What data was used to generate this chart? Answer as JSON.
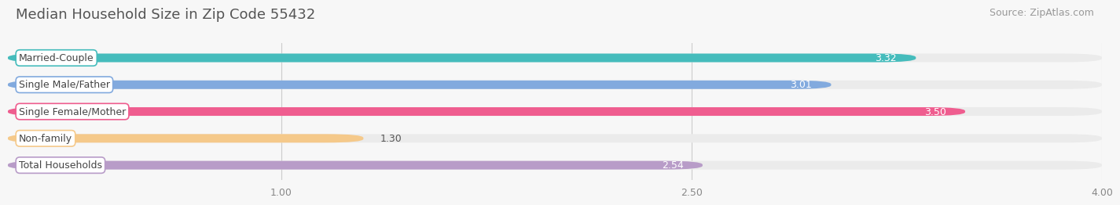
{
  "title": "Median Household Size in Zip Code 55432",
  "source": "Source: ZipAtlas.com",
  "categories": [
    "Married-Couple",
    "Single Male/Father",
    "Single Female/Mother",
    "Non-family",
    "Total Households"
  ],
  "values": [
    3.32,
    3.01,
    3.5,
    1.3,
    2.54
  ],
  "bar_colors": [
    "#45bcbc",
    "#82aade",
    "#ef5d8f",
    "#f5c98a",
    "#b89cc8"
  ],
  "bar_edge_colors": [
    "#45bcbc",
    "#82aade",
    "#ef5d8f",
    "#f5c98a",
    "#b89cc8"
  ],
  "label_edge_colors": [
    "#45bcbc",
    "#82aade",
    "#ef5d8f",
    "#f5c98a",
    "#b89cc8"
  ],
  "xlim": [
    0,
    4.0
  ],
  "xticks": [
    1.0,
    2.5,
    4.0
  ],
  "xticklabels": [
    "1.00",
    "2.50",
    "4.00"
  ],
  "bar_height": 0.32,
  "bar_gap": 1.0,
  "background_color": "#f7f7f7",
  "bg_bar_color": "#ebebeb",
  "title_fontsize": 13,
  "source_fontsize": 9,
  "label_fontsize": 9,
  "value_fontsize": 9
}
